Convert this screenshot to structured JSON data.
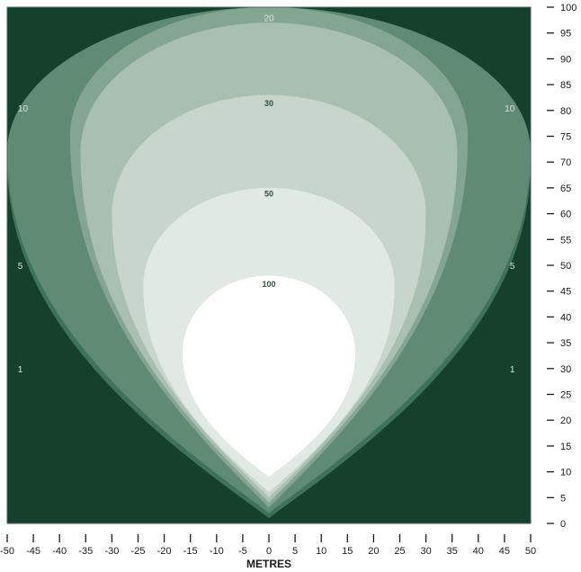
{
  "chart_data": {
    "type": "heatmap",
    "title": "",
    "xlabel": "METRES",
    "ylabel": "",
    "xlim": [
      -50,
      50
    ],
    "ylim": [
      0,
      100
    ],
    "x_ticks": [
      -50,
      -45,
      -40,
      -35,
      -30,
      -25,
      -20,
      -15,
      -10,
      -5,
      0,
      5,
      10,
      15,
      20,
      25,
      30,
      35,
      40,
      45,
      50
    ],
    "y_ticks": [
      0,
      5,
      10,
      15,
      20,
      25,
      30,
      35,
      40,
      45,
      50,
      55,
      60,
      65,
      70,
      75,
      80,
      85,
      90,
      95,
      100
    ],
    "x_tick_labels": [
      "-50",
      "-45",
      "-40",
      "-35",
      "-30",
      "-25",
      "-20",
      "-15",
      "-10",
      "-5",
      "0",
      "5",
      "10",
      "15",
      "20",
      "25",
      "30",
      "35",
      "40",
      "45",
      "50"
    ],
    "y_tick_labels": [
      "0",
      "5",
      "10",
      "15",
      "20",
      "25",
      "30",
      "35",
      "40",
      "45",
      "50",
      "55",
      "60",
      "65",
      "70",
      "75",
      "80",
      "85",
      "90",
      "95",
      "100"
    ],
    "background_color": "#14402c",
    "contours": [
      {
        "label": "1",
        "color": "#3f7359",
        "top_y": 100,
        "half_width_max": 50,
        "center_y": 70,
        "bottom_y": 1
      },
      {
        "label": "5",
        "color": "#5f8a74",
        "top_y": 100,
        "half_width_max": 50,
        "center_y": 72,
        "bottom_y": 2
      },
      {
        "label": "10",
        "color": "#85a593",
        "top_y": 100,
        "half_width_max": 38,
        "center_y": 75,
        "bottom_y": 3
      },
      {
        "label": "20",
        "color": "#a8bfb2",
        "top_y": 97,
        "half_width_max": 36,
        "center_y": 72,
        "bottom_y": 4
      },
      {
        "label": "30",
        "color": "#c7d5cd",
        "top_y": 83,
        "half_width_max": 30,
        "center_y": 60,
        "bottom_y": 5
      },
      {
        "label": "50",
        "color": "#e1e9e4",
        "top_y": 65,
        "half_width_max": 24,
        "center_y": 46,
        "bottom_y": 6
      },
      {
        "label": "100",
        "color": "#ffffff",
        "top_y": 48,
        "half_width_max": 16.5,
        "center_y": 33,
        "bottom_y": 9
      }
    ],
    "contour_labels": [
      {
        "text": "1",
        "x": -47.5,
        "y": 30,
        "style": "light"
      },
      {
        "text": "1",
        "x": 46.5,
        "y": 30,
        "style": "light"
      },
      {
        "text": "5",
        "x": -47.5,
        "y": 50,
        "style": "light"
      },
      {
        "text": "5",
        "x": 46.5,
        "y": 50,
        "style": "light"
      },
      {
        "text": "10",
        "x": -47,
        "y": 80.5,
        "style": "light"
      },
      {
        "text": "10",
        "x": 46,
        "y": 80.5,
        "style": "light"
      },
      {
        "text": "20",
        "x": 0,
        "y": 98,
        "style": "light"
      },
      {
        "text": "30",
        "x": 0,
        "y": 81.5,
        "style": "dark"
      },
      {
        "text": "50",
        "x": 0,
        "y": 64,
        "style": "dark"
      },
      {
        "text": "100",
        "x": 0,
        "y": 46.5,
        "style": "dark"
      }
    ]
  }
}
